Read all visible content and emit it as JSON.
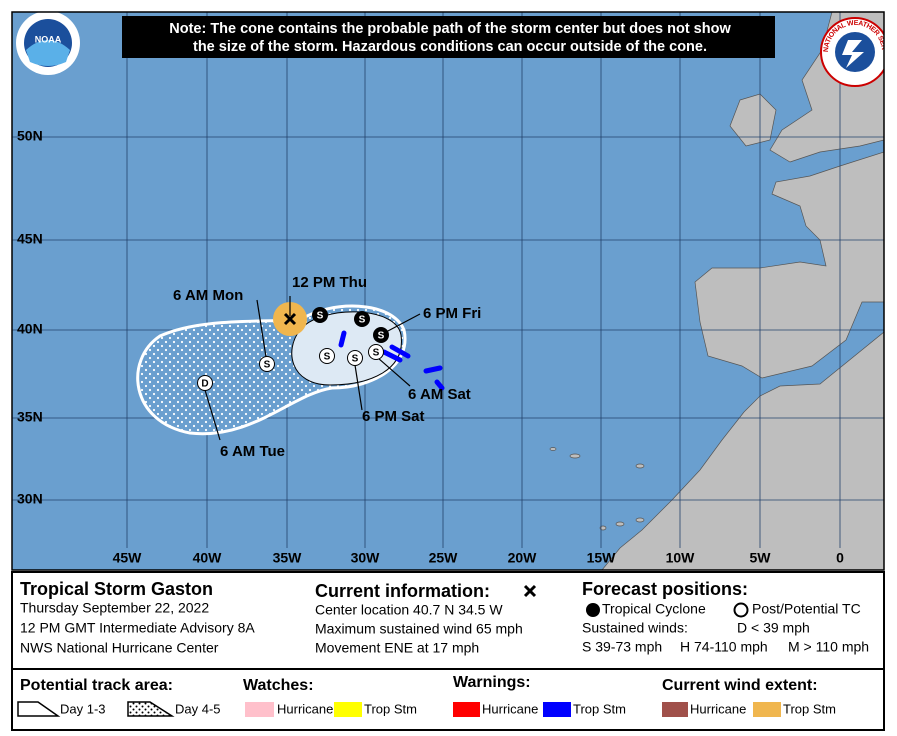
{
  "header": {
    "note_line1": "Note: The cone contains the probable path of the storm center but does not show",
    "note_line2": "the size of the storm. Hazardous conditions can occur outside of the cone.",
    "noaa_logo": "NOAA",
    "nws_logo": "NATIONAL WEATHER SERVICE"
  },
  "map": {
    "lat_labels": [
      "50N",
      "45N",
      "40N",
      "35N",
      "30N"
    ],
    "lon_labels": [
      "45W",
      "40W",
      "35W",
      "30W",
      "25W",
      "20W",
      "15W",
      "10W",
      "5W",
      "0"
    ],
    "point_labels": [
      "12 PM Thu",
      "6 AM Mon",
      "6 PM Fri",
      "6 AM Sat",
      "6 PM Sat",
      "6 AM Tue"
    ],
    "point_symbols": [
      "S",
      "S",
      "S",
      "S",
      "S",
      "S",
      "S",
      "D"
    ]
  },
  "legend": {
    "storm_name": "Tropical Storm Gaston",
    "date": "Thursday September 22, 2022",
    "advisory": "12 PM GMT Intermediate Advisory 8A",
    "center": "NWS National Hurricane Center",
    "current_title": "Current information:",
    "current_lines": [
      "Center location 40.7 N 34.5 W",
      "Maximum sustained wind 65 mph",
      "Movement ENE at 17 mph"
    ],
    "forecast_title": "Forecast positions:",
    "tropical_cyclone": "Tropical Cyclone",
    "post_tc": "Post/Potential TC",
    "sustained_winds": "Sustained winds:",
    "wind_classes": [
      "D < 39 mph",
      "S 39-73 mph",
      "H 74-110 mph",
      "M > 110 mph"
    ],
    "track_title": "Potential track area:",
    "day13": "Day 1-3",
    "day45": "Day 4-5",
    "watches_title": "Watches:",
    "watches": [
      "Hurricane",
      "Trop Stm"
    ],
    "warnings_title": "Warnings:",
    "warnings": [
      "Hurricane",
      "Trop Stm"
    ],
    "wind_extent_title": "Current wind extent:",
    "wind_extent": [
      "Hurricane",
      "Trop Stm"
    ]
  }
}
